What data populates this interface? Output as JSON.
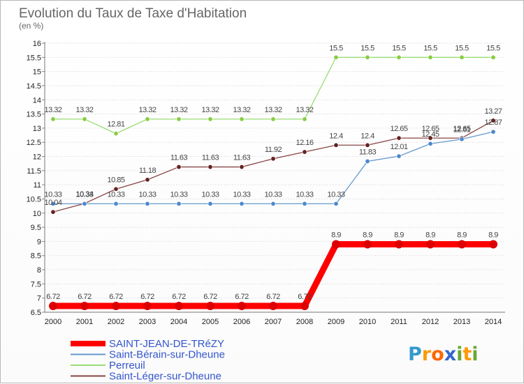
{
  "chart_data": {
    "type": "line",
    "title": "Evolution du Taux de Taxe d'Habitation",
    "ylabel": "(en %)",
    "xlabel": "",
    "x": [
      2000,
      2001,
      2002,
      2003,
      2004,
      2005,
      2006,
      2007,
      2008,
      2009,
      2010,
      2011,
      2012,
      2013,
      2014
    ],
    "ylim": [
      6.5,
      16
    ],
    "yticks": [
      6.5,
      7,
      7.5,
      8,
      8.5,
      9,
      9.5,
      10,
      10.5,
      11,
      11.5,
      12,
      12.5,
      13,
      13.5,
      14,
      14.5,
      15,
      15.5,
      16
    ],
    "grid": "horizontal",
    "legend_position": "bottom-left",
    "series": [
      {
        "name": "SAINT-JEAN-DE-TRéZY",
        "color": "#ff0000",
        "marker_color": "#dd0000",
        "values": [
          6.72,
          6.72,
          6.72,
          6.72,
          6.72,
          6.72,
          6.72,
          6.72,
          6.72,
          8.9,
          8.9,
          8.9,
          8.9,
          8.9,
          8.9
        ],
        "labels": [
          "6.72",
          "6.72",
          "6.72",
          "6.72",
          "6.72",
          "6.72",
          "6.72",
          "6.72",
          "6.72",
          "8.9",
          "8.9",
          "8.9",
          "8.9",
          "8.9",
          "8.9"
        ]
      },
      {
        "name": "Saint-Bérain-sur-Dheune",
        "color": "#6699cc",
        "marker_color": "#4d88cc",
        "values": [
          10.33,
          10.33,
          10.33,
          10.33,
          10.33,
          10.33,
          10.33,
          10.33,
          10.33,
          10.33,
          11.83,
          12.01,
          12.45,
          12.61,
          12.87
        ],
        "labels": [
          "10.33",
          "10.33",
          "10.33",
          "10.33",
          "10.33",
          "10.33",
          "10.33",
          "10.33",
          "10.33",
          "10.33",
          "11.83",
          "12.01",
          "12.45",
          "12.61",
          "12.87"
        ]
      },
      {
        "name": "Perreuil",
        "color": "#99dd77",
        "marker_color": "#88cc44",
        "values": [
          13.32,
          13.32,
          12.81,
          13.32,
          13.32,
          13.32,
          13.32,
          13.32,
          13.32,
          15.5,
          15.5,
          15.5,
          15.5,
          15.5,
          15.5
        ],
        "labels": [
          "13.32",
          "13.32",
          "12.81",
          "13.32",
          "13.32",
          "13.32",
          "13.32",
          "13.32",
          "13.32",
          "15.5",
          "15.5",
          "15.5",
          "15.5",
          "15.5",
          "15.5"
        ]
      },
      {
        "name": "Saint-Léger-sur-Dheune",
        "color": "#884444",
        "marker_color": "#662222",
        "values": [
          10.04,
          10.34,
          10.85,
          11.18,
          11.63,
          11.63,
          11.63,
          11.92,
          12.16,
          12.4,
          12.4,
          12.65,
          12.65,
          12.65,
          13.27
        ],
        "labels": [
          "10.04",
          "10.34",
          "10.85",
          "11.18",
          "11.63",
          "11.63",
          "11.63",
          "11.92",
          "12.16",
          "12.4",
          "12.4",
          "12.65",
          "12.65",
          "12.65",
          "13.27"
        ]
      }
    ]
  },
  "logo": {
    "letters": [
      "P",
      "r",
      "o",
      "x",
      "i",
      "t",
      "i"
    ],
    "colors": [
      "#3399cc",
      "#ff9900",
      "#ff6600",
      "#3366cc",
      "#66aa33",
      "#ff9900",
      "#66aa33"
    ]
  }
}
